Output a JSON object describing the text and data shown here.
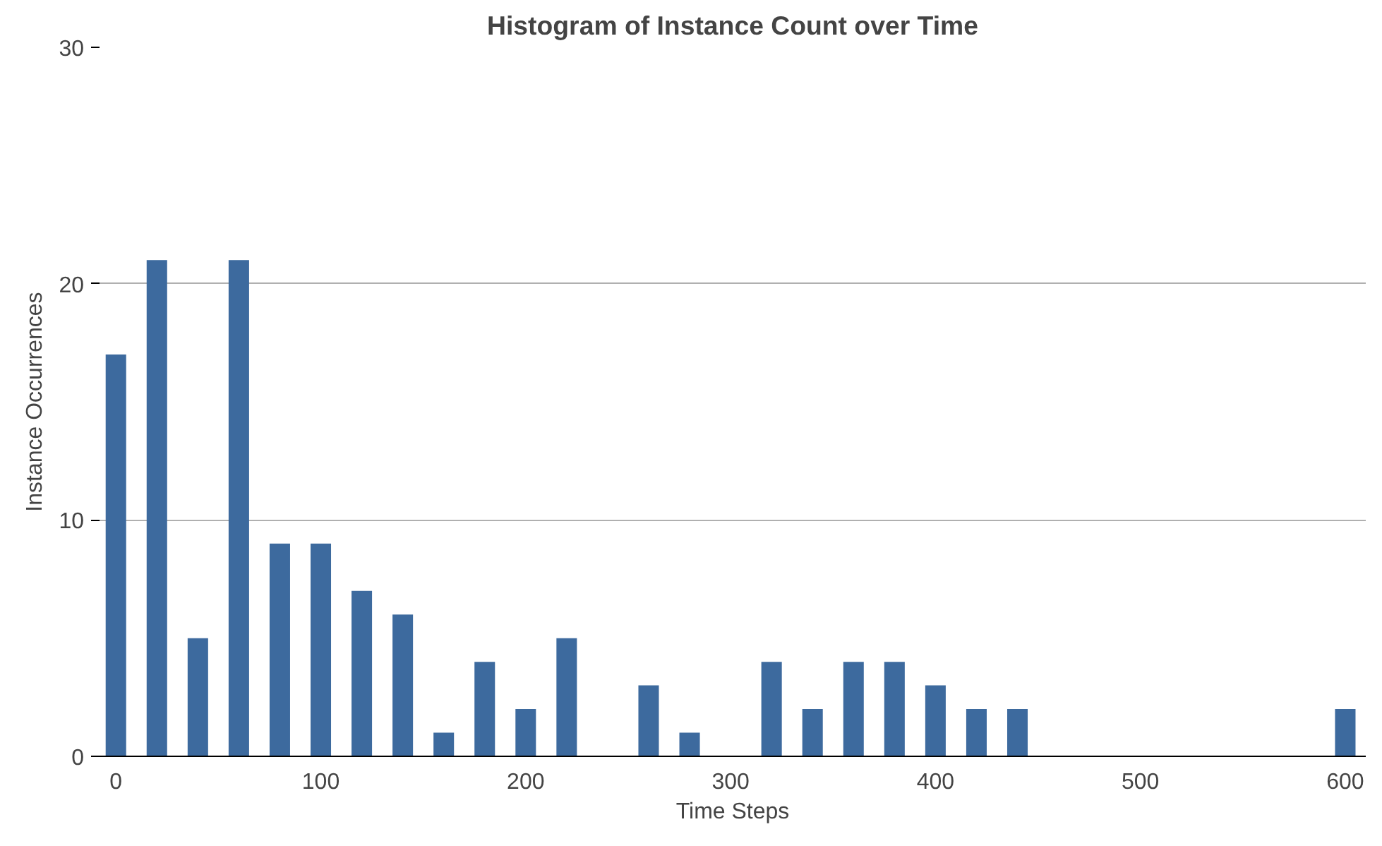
{
  "chart_data": {
    "type": "bar",
    "title": "Histogram of Instance Count over Time",
    "xlabel": "Time Steps",
    "ylabel": "Instance Occurrences",
    "categories": [
      "0",
      null,
      null,
      null,
      null,
      "100",
      null,
      null,
      null,
      null,
      "200",
      null,
      null,
      null,
      null,
      "300",
      null,
      null,
      null,
      null,
      "400",
      null,
      null,
      null,
      null,
      "500",
      null,
      null,
      null,
      null,
      "600"
    ],
    "values": [
      17,
      21,
      5,
      21,
      9,
      9,
      7,
      6,
      1,
      4,
      2,
      5,
      0,
      3,
      1,
      0,
      4,
      2,
      4,
      4,
      3,
      2,
      2,
      0,
      0,
      0,
      0,
      0,
      0,
      0,
      2
    ],
    "color": "#3d6a9e",
    "ylim": [
      0,
      30
    ],
    "yticks": [
      0,
      10,
      20,
      30
    ],
    "grid": "y"
  }
}
